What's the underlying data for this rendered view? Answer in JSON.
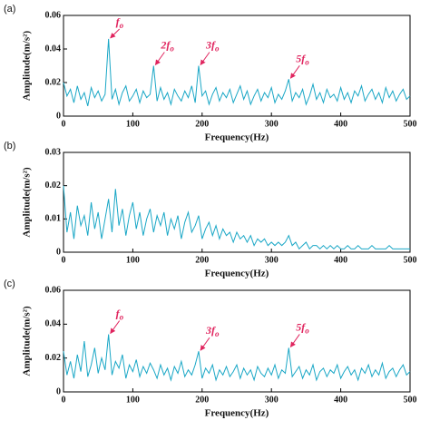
{
  "chart_data": [
    {
      "type": "line",
      "panel_label": "(a)",
      "xlabel": "Frequency(Hz)",
      "ylabel": "Amplitude(m/s²)",
      "color": "#1aa7c6",
      "xlim": [
        0,
        500
      ],
      "xticks": [
        0,
        100,
        200,
        300,
        400,
        500
      ],
      "ylim": [
        0,
        0.06
      ],
      "yticks": [
        0,
        0.02,
        0.04,
        0.06
      ],
      "x": [
        0,
        5,
        10,
        15,
        20,
        25,
        30,
        35,
        40,
        45,
        50,
        55,
        60,
        65,
        70,
        75,
        80,
        85,
        90,
        95,
        100,
        105,
        110,
        115,
        120,
        125,
        130,
        135,
        140,
        145,
        150,
        155,
        160,
        165,
        170,
        175,
        180,
        185,
        190,
        195,
        200,
        205,
        210,
        215,
        220,
        225,
        230,
        235,
        240,
        245,
        250,
        255,
        260,
        265,
        270,
        275,
        280,
        285,
        290,
        295,
        300,
        305,
        310,
        315,
        320,
        325,
        330,
        335,
        340,
        345,
        350,
        355,
        360,
        365,
        370,
        375,
        380,
        385,
        390,
        395,
        400,
        405,
        410,
        415,
        420,
        425,
        430,
        435,
        440,
        445,
        450,
        455,
        460,
        465,
        470,
        475,
        480,
        485,
        490,
        495,
        500
      ],
      "values": [
        0.02,
        0.012,
        0.016,
        0.008,
        0.018,
        0.01,
        0.014,
        0.006,
        0.017,
        0.011,
        0.015,
        0.009,
        0.013,
        0.046,
        0.01,
        0.016,
        0.007,
        0.014,
        0.018,
        0.009,
        0.012,
        0.016,
        0.008,
        0.015,
        0.011,
        0.013,
        0.03,
        0.009,
        0.017,
        0.01,
        0.014,
        0.007,
        0.016,
        0.012,
        0.009,
        0.015,
        0.011,
        0.018,
        0.008,
        0.03,
        0.012,
        0.015,
        0.007,
        0.013,
        0.017,
        0.009,
        0.014,
        0.011,
        0.016,
        0.008,
        0.013,
        0.018,
        0.01,
        0.015,
        0.007,
        0.012,
        0.016,
        0.009,
        0.014,
        0.011,
        0.017,
        0.008,
        0.013,
        0.01,
        0.015,
        0.022,
        0.009,
        0.014,
        0.011,
        0.016,
        0.007,
        0.012,
        0.019,
        0.01,
        0.014,
        0.008,
        0.016,
        0.011,
        0.013,
        0.009,
        0.017,
        0.01,
        0.014,
        0.008,
        0.015,
        0.012,
        0.018,
        0.009,
        0.013,
        0.016,
        0.01,
        0.014,
        0.008,
        0.017,
        0.011,
        0.015,
        0.009,
        0.013,
        0.016,
        0.01,
        0.012
      ],
      "annotations": [
        {
          "label": "f",
          "subscript": "o",
          "x": 65
        },
        {
          "label": "2f",
          "subscript": "o",
          "x": 130
        },
        {
          "label": "3f",
          "subscript": "o",
          "x": 195
        },
        {
          "label": "5f",
          "subscript": "o",
          "x": 325
        }
      ]
    },
    {
      "type": "line",
      "panel_label": "(b)",
      "xlabel": "Frequency(Hz)",
      "ylabel": "Amplitude(m/s²)",
      "color": "#1aa7c6",
      "xlim": [
        0,
        500
      ],
      "xticks": [
        0,
        100,
        200,
        300,
        400,
        500
      ],
      "ylim": [
        0,
        0.03
      ],
      "yticks": [
        0,
        0.01,
        0.02,
        0.03
      ],
      "x": [
        0,
        5,
        10,
        15,
        20,
        25,
        30,
        35,
        40,
        45,
        50,
        55,
        60,
        65,
        70,
        75,
        80,
        85,
        90,
        95,
        100,
        105,
        110,
        115,
        120,
        125,
        130,
        135,
        140,
        145,
        150,
        155,
        160,
        165,
        170,
        175,
        180,
        185,
        190,
        195,
        200,
        205,
        210,
        215,
        220,
        225,
        230,
        235,
        240,
        245,
        250,
        255,
        260,
        265,
        270,
        275,
        280,
        285,
        290,
        295,
        300,
        305,
        310,
        315,
        320,
        325,
        330,
        335,
        340,
        345,
        350,
        355,
        360,
        365,
        370,
        375,
        380,
        385,
        390,
        395,
        400,
        405,
        410,
        415,
        420,
        425,
        430,
        435,
        440,
        445,
        450,
        455,
        460,
        465,
        470,
        475,
        480,
        485,
        490,
        495,
        500
      ],
      "values": [
        0.02,
        0.006,
        0.012,
        0.004,
        0.014,
        0.008,
        0.011,
        0.005,
        0.015,
        0.007,
        0.012,
        0.004,
        0.01,
        0.016,
        0.006,
        0.019,
        0.008,
        0.013,
        0.005,
        0.011,
        0.015,
        0.007,
        0.012,
        0.005,
        0.01,
        0.013,
        0.006,
        0.011,
        0.008,
        0.012,
        0.005,
        0.01,
        0.007,
        0.011,
        0.004,
        0.009,
        0.012,
        0.006,
        0.008,
        0.011,
        0.004,
        0.007,
        0.009,
        0.005,
        0.008,
        0.004,
        0.007,
        0.005,
        0.006,
        0.003,
        0.006,
        0.004,
        0.005,
        0.003,
        0.005,
        0.002,
        0.004,
        0.003,
        0.004,
        0.002,
        0.003,
        0.002,
        0.003,
        0.002,
        0.003,
        0.005,
        0.002,
        0.003,
        0.001,
        0.002,
        0.003,
        0.001,
        0.002,
        0.002,
        0.001,
        0.002,
        0.001,
        0.002,
        0.001,
        0.002,
        0.001,
        0.001,
        0.002,
        0.001,
        0.001,
        0.002,
        0.001,
        0.001,
        0.001,
        0.002,
        0.001,
        0.001,
        0.001,
        0.001,
        0.002,
        0.001,
        0.001,
        0.001,
        0.001,
        0.001,
        0.001
      ]
    },
    {
      "type": "line",
      "panel_label": "(c)",
      "xlabel": "Frequency(Hz)",
      "ylabel": "Amplitude(m/s²)",
      "color": "#1aa7c6",
      "xlim": [
        0,
        500
      ],
      "xticks": [
        0,
        100,
        200,
        300,
        400,
        500
      ],
      "ylim": [
        0,
        0.06
      ],
      "yticks": [
        0,
        0.02,
        0.04,
        0.06
      ],
      "x": [
        0,
        5,
        10,
        15,
        20,
        25,
        30,
        35,
        40,
        45,
        50,
        55,
        60,
        65,
        70,
        75,
        80,
        85,
        90,
        95,
        100,
        105,
        110,
        115,
        120,
        125,
        130,
        135,
        140,
        145,
        150,
        155,
        160,
        165,
        170,
        175,
        180,
        185,
        190,
        195,
        200,
        205,
        210,
        215,
        220,
        225,
        230,
        235,
        240,
        245,
        250,
        255,
        260,
        265,
        270,
        275,
        280,
        285,
        290,
        295,
        300,
        305,
        310,
        315,
        320,
        325,
        330,
        335,
        340,
        345,
        350,
        355,
        360,
        365,
        370,
        375,
        380,
        385,
        390,
        395,
        400,
        405,
        410,
        415,
        420,
        425,
        430,
        435,
        440,
        445,
        450,
        455,
        460,
        465,
        470,
        475,
        480,
        485,
        490,
        495,
        500
      ],
      "values": [
        0.024,
        0.01,
        0.018,
        0.008,
        0.022,
        0.012,
        0.03,
        0.009,
        0.016,
        0.026,
        0.011,
        0.02,
        0.013,
        0.034,
        0.01,
        0.018,
        0.014,
        0.022,
        0.008,
        0.016,
        0.012,
        0.019,
        0.009,
        0.015,
        0.011,
        0.017,
        0.013,
        0.008,
        0.016,
        0.01,
        0.014,
        0.007,
        0.015,
        0.011,
        0.018,
        0.009,
        0.013,
        0.01,
        0.016,
        0.024,
        0.008,
        0.014,
        0.011,
        0.016,
        0.007,
        0.013,
        0.01,
        0.015,
        0.009,
        0.012,
        0.016,
        0.008,
        0.014,
        0.01,
        0.013,
        0.007,
        0.015,
        0.011,
        0.009,
        0.014,
        0.01,
        0.016,
        0.008,
        0.013,
        0.011,
        0.026,
        0.009,
        0.012,
        0.015,
        0.008,
        0.013,
        0.01,
        0.016,
        0.007,
        0.012,
        0.014,
        0.009,
        0.013,
        0.011,
        0.016,
        0.008,
        0.012,
        0.015,
        0.01,
        0.013,
        0.007,
        0.014,
        0.011,
        0.016,
        0.009,
        0.013,
        0.01,
        0.017,
        0.008,
        0.012,
        0.014,
        0.009,
        0.013,
        0.016,
        0.01,
        0.012
      ],
      "annotations": [
        {
          "label": "f",
          "subscript": "o",
          "x": 65
        },
        {
          "label": "3f",
          "subscript": "o",
          "x": 195
        },
        {
          "label": "5f",
          "subscript": "o",
          "x": 325
        }
      ]
    }
  ]
}
